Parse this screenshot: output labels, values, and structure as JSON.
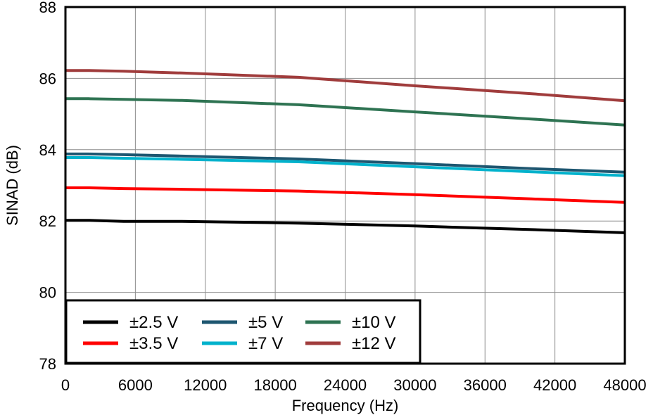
{
  "chart_data": {
    "type": "line",
    "title": "",
    "xlabel": "Frequency (Hz)",
    "ylabel": "SINAD (dB)",
    "xlim": [
      0,
      48000
    ],
    "ylim": [
      78,
      88
    ],
    "xticks": [
      "0",
      "6000",
      "12000",
      "18000",
      "24000",
      "30000",
      "36000",
      "42000",
      "48000"
    ],
    "yticks": [
      "78",
      "80",
      "82",
      "84",
      "86",
      "88"
    ],
    "grid": true,
    "legend_position": "bottom-left",
    "series": [
      {
        "name": "±2.5 V",
        "color": "#000000",
        "x": [
          0,
          2000,
          5000,
          10000,
          20000,
          30000,
          40000,
          48000
        ],
        "y": [
          82.02,
          82.02,
          81.99,
          81.99,
          81.94,
          81.86,
          81.76,
          81.67
        ]
      },
      {
        "name": "±3.5 V",
        "color": "#ff0000",
        "x": [
          0,
          2000,
          5000,
          10000,
          20000,
          30000,
          40000,
          48000
        ],
        "y": [
          82.93,
          82.93,
          82.91,
          82.89,
          82.84,
          82.74,
          82.62,
          82.52
        ]
      },
      {
        "name": "±5 V",
        "color": "#1d5670",
        "x": [
          0,
          2000,
          5000,
          10000,
          20000,
          30000,
          40000,
          48000
        ],
        "y": [
          83.88,
          83.88,
          83.86,
          83.82,
          83.74,
          83.61,
          83.47,
          83.37
        ]
      },
      {
        "name": "±7 V",
        "color": "#00b2cc",
        "x": [
          0,
          2000,
          5000,
          10000,
          20000,
          30000,
          40000,
          48000
        ],
        "y": [
          83.78,
          83.78,
          83.76,
          83.73,
          83.66,
          83.52,
          83.38,
          83.27
        ]
      },
      {
        "name": "±10 V",
        "color": "#2e7352",
        "x": [
          0,
          2000,
          5000,
          10000,
          20000,
          30000,
          40000,
          48000
        ],
        "y": [
          85.43,
          85.43,
          85.41,
          85.38,
          85.26,
          85.06,
          84.86,
          84.69
        ]
      },
      {
        "name": "±12 V",
        "color": "#a03c3c",
        "x": [
          0,
          2000,
          5000,
          10000,
          20000,
          30000,
          40000,
          48000
        ],
        "y": [
          86.22,
          86.22,
          86.2,
          86.15,
          86.03,
          85.79,
          85.57,
          85.37
        ]
      }
    ]
  }
}
